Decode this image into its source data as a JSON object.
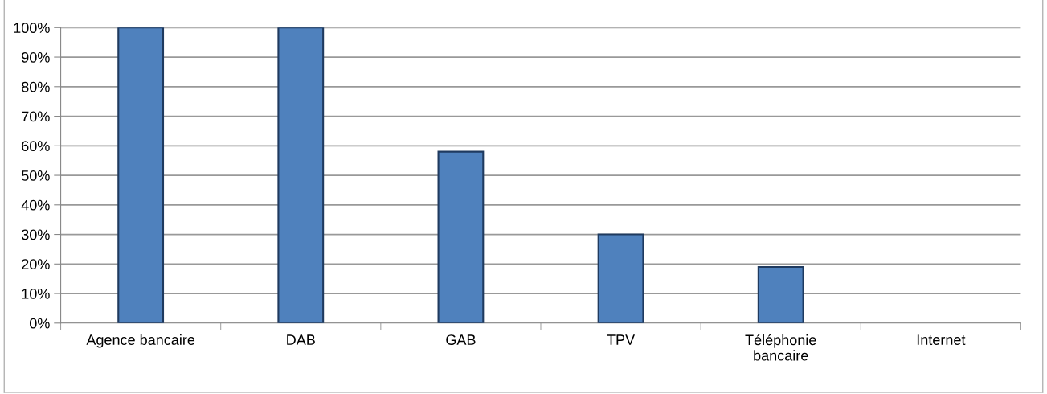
{
  "chart_data": {
    "type": "bar",
    "categories": [
      "Agence bancaire",
      "DAB",
      "GAB",
      "TPV",
      "Téléphonie\nbancaire",
      "Internet"
    ],
    "values": [
      100,
      100,
      58,
      30,
      19,
      0
    ],
    "color": "#4f81bd",
    "ylim": [
      0,
      100
    ],
    "yticks": [
      {
        "value": 0,
        "label": "0%"
      },
      {
        "value": 10,
        "label": "10%"
      },
      {
        "value": 20,
        "label": "20%"
      },
      {
        "value": 30,
        "label": "30%"
      },
      {
        "value": 40,
        "label": "40%"
      },
      {
        "value": 50,
        "label": "50%"
      },
      {
        "value": 60,
        "label": "60%"
      },
      {
        "value": 70,
        "label": "70%"
      },
      {
        "value": 80,
        "label": "80%"
      },
      {
        "value": 90,
        "label": "90%"
      },
      {
        "value": 100,
        "label": "100%"
      }
    ],
    "grid": "y"
  }
}
